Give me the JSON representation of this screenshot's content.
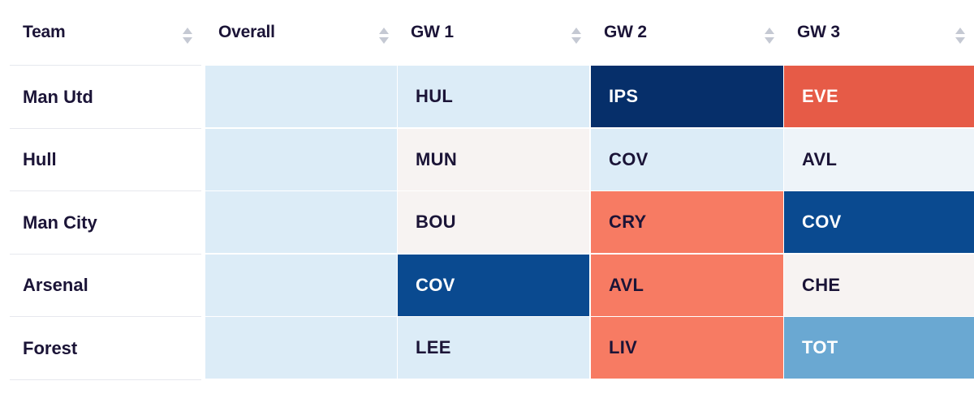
{
  "table": {
    "headers": [
      {
        "key": "team",
        "label": "Team"
      },
      {
        "key": "overall",
        "label": "Overall"
      },
      {
        "key": "gw1",
        "label": "GW 1"
      },
      {
        "key": "gw2",
        "label": "GW 2"
      },
      {
        "key": "gw3",
        "label": "GW 3"
      }
    ],
    "rows": [
      {
        "team": "Man Utd",
        "fixtures": [
          {
            "opponent": "HUL",
            "bg": "#dcecf7",
            "fg": "#1b1437"
          },
          {
            "opponent": "IPS",
            "bg": "#062f6a",
            "fg": "#ffffff"
          },
          {
            "opponent": "EVE",
            "bg": "#e65b47",
            "fg": "#ffffff"
          }
        ]
      },
      {
        "team": "Hull",
        "fixtures": [
          {
            "opponent": "MUN",
            "bg": "#f7f3f2",
            "fg": "#1b1437"
          },
          {
            "opponent": "COV",
            "bg": "#dcecf7",
            "fg": "#1b1437"
          },
          {
            "opponent": "AVL",
            "bg": "#eef4f9",
            "fg": "#1b1437"
          }
        ]
      },
      {
        "team": "Man City",
        "fixtures": [
          {
            "opponent": "BOU",
            "bg": "#f7f3f2",
            "fg": "#1b1437"
          },
          {
            "opponent": "CRY",
            "bg": "#f77b63",
            "fg": "#1b1437"
          },
          {
            "opponent": "COV",
            "bg": "#0a4a90",
            "fg": "#ffffff"
          }
        ]
      },
      {
        "team": "Arsenal",
        "fixtures": [
          {
            "opponent": "COV",
            "bg": "#0a4a90",
            "fg": "#ffffff"
          },
          {
            "opponent": "AVL",
            "bg": "#f77b63",
            "fg": "#1b1437"
          },
          {
            "opponent": "CHE",
            "bg": "#f7f3f2",
            "fg": "#1b1437"
          }
        ]
      },
      {
        "team": "Forest",
        "fixtures": [
          {
            "opponent": "LEE",
            "bg": "#dcecf7",
            "fg": "#1b1437"
          },
          {
            "opponent": "LIV",
            "bg": "#f77b63",
            "fg": "#1b1437"
          },
          {
            "opponent": "TOT",
            "bg": "#6aa8d2",
            "fg": "#ffffff"
          }
        ]
      }
    ]
  },
  "icons": {
    "sort": "sort-arrows-icon"
  },
  "colors": {
    "text": "#1b1437",
    "overall_bg": "#dcecf7",
    "divider": "#e6e8ee",
    "sort_icon": "#c5c9d3"
  }
}
